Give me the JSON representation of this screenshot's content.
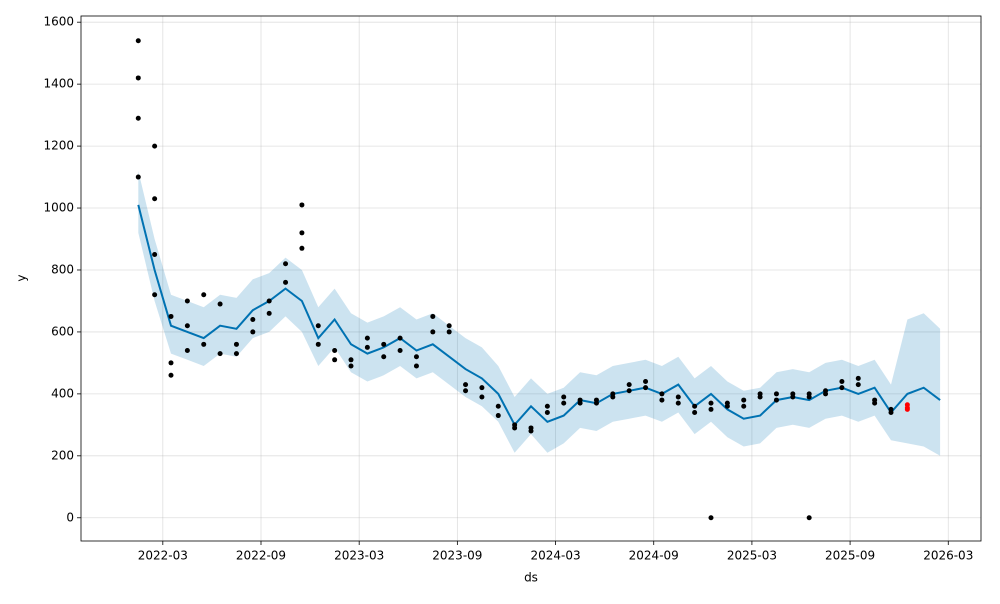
{
  "chart_data": {
    "type": "forecast",
    "xlabel": "ds",
    "ylabel": "y",
    "xlim": [
      "2021-10",
      "2026-05"
    ],
    "xticks": [
      "2022-03",
      "2022-09",
      "2023-03",
      "2023-09",
      "2024-03",
      "2024-09",
      "2025-03",
      "2025-09",
      "2026-03"
    ],
    "ylim": [
      -75,
      1620
    ],
    "yticks": [
      0,
      200,
      400,
      600,
      800,
      1000,
      1200,
      1400,
      1600
    ],
    "grid": true,
    "forecast": {
      "color": "#0072b2",
      "x": [
        "2022-01",
        "2022-02",
        "2022-03",
        "2022-04",
        "2022-05",
        "2022-06",
        "2022-07",
        "2022-08",
        "2022-09",
        "2022-10",
        "2022-11",
        "2022-12",
        "2023-01",
        "2023-02",
        "2023-03",
        "2023-04",
        "2023-05",
        "2023-06",
        "2023-07",
        "2023-08",
        "2023-09",
        "2023-10",
        "2023-11",
        "2023-12",
        "2024-01",
        "2024-02",
        "2024-03",
        "2024-04",
        "2024-05",
        "2024-06",
        "2024-07",
        "2024-08",
        "2024-09",
        "2024-10",
        "2024-11",
        "2024-12",
        "2025-01",
        "2025-02",
        "2025-03",
        "2025-04",
        "2025-05",
        "2025-06",
        "2025-07",
        "2025-08",
        "2025-09",
        "2025-10",
        "2025-11",
        "2025-12",
        "2026-01",
        "2026-02"
      ],
      "values": [
        1010,
        800,
        620,
        600,
        580,
        620,
        610,
        670,
        700,
        740,
        700,
        580,
        640,
        560,
        530,
        550,
        580,
        540,
        560,
        520,
        480,
        450,
        400,
        300,
        360,
        310,
        330,
        380,
        370,
        400,
        410,
        420,
        400,
        430,
        360,
        400,
        350,
        320,
        330,
        380,
        390,
        380,
        410,
        420,
        400,
        420,
        340,
        400,
        420,
        380
      ],
      "lower": [
        920,
        700,
        530,
        510,
        490,
        530,
        520,
        580,
        600,
        650,
        600,
        490,
        550,
        470,
        440,
        460,
        490,
        450,
        470,
        430,
        390,
        360,
        310,
        210,
        270,
        210,
        240,
        290,
        280,
        310,
        320,
        330,
        310,
        340,
        270,
        310,
        260,
        230,
        240,
        290,
        300,
        290,
        320,
        330,
        310,
        330,
        250,
        240,
        230,
        200
      ],
      "upper": [
        1120,
        900,
        720,
        700,
        680,
        720,
        710,
        770,
        790,
        840,
        800,
        680,
        740,
        660,
        630,
        650,
        680,
        640,
        660,
        620,
        580,
        550,
        490,
        390,
        450,
        400,
        420,
        470,
        460,
        490,
        500,
        510,
        490,
        520,
        450,
        490,
        440,
        410,
        420,
        470,
        480,
        470,
        500,
        510,
        490,
        510,
        430,
        640,
        660,
        610
      ]
    },
    "observed": {
      "color": "#000000",
      "x": [
        "2022-01",
        "2022-01",
        "2022-01",
        "2022-01",
        "2022-02",
        "2022-02",
        "2022-02",
        "2022-02",
        "2022-03",
        "2022-03",
        "2022-03",
        "2022-04",
        "2022-04",
        "2022-04",
        "2022-05",
        "2022-05",
        "2022-06",
        "2022-06",
        "2022-07",
        "2022-07",
        "2022-08",
        "2022-08",
        "2022-09",
        "2022-09",
        "2022-10",
        "2022-10",
        "2022-11",
        "2022-11",
        "2022-11",
        "2022-12",
        "2022-12",
        "2023-01",
        "2023-01",
        "2023-02",
        "2023-02",
        "2023-03",
        "2023-03",
        "2023-04",
        "2023-04",
        "2023-05",
        "2023-05",
        "2023-06",
        "2023-06",
        "2023-07",
        "2023-07",
        "2023-08",
        "2023-08",
        "2023-09",
        "2023-09",
        "2023-10",
        "2023-10",
        "2023-11",
        "2023-11",
        "2023-12",
        "2023-12",
        "2024-01",
        "2024-01",
        "2024-02",
        "2024-02",
        "2024-03",
        "2024-03",
        "2024-04",
        "2024-04",
        "2024-05",
        "2024-05",
        "2024-06",
        "2024-06",
        "2024-07",
        "2024-07",
        "2024-08",
        "2024-08",
        "2024-09",
        "2024-09",
        "2024-10",
        "2024-10",
        "2024-11",
        "2024-11",
        "2024-12",
        "2024-12",
        "2024-12",
        "2025-01",
        "2025-01",
        "2025-02",
        "2025-02",
        "2025-03",
        "2025-03",
        "2025-04",
        "2025-04",
        "2025-05",
        "2025-05",
        "2025-06",
        "2025-06",
        "2025-06",
        "2025-07",
        "2025-07",
        "2025-08",
        "2025-08",
        "2025-09",
        "2025-09",
        "2025-10",
        "2025-10",
        "2025-11",
        "2025-11"
      ],
      "values": [
        1540,
        1420,
        1290,
        1100,
        1200,
        1030,
        850,
        720,
        650,
        500,
        460,
        700,
        620,
        540,
        720,
        560,
        690,
        530,
        560,
        530,
        640,
        600,
        700,
        660,
        820,
        760,
        1010,
        920,
        870,
        620,
        560,
        540,
        510,
        510,
        490,
        580,
        550,
        560,
        520,
        580,
        540,
        520,
        490,
        650,
        600,
        620,
        600,
        430,
        410,
        420,
        390,
        360,
        330,
        300,
        290,
        290,
        280,
        360,
        340,
        390,
        370,
        380,
        370,
        380,
        370,
        400,
        390,
        430,
        410,
        440,
        420,
        400,
        380,
        390,
        370,
        360,
        340,
        370,
        350,
        0,
        370,
        360,
        380,
        360,
        400,
        390,
        400,
        380,
        400,
        390,
        400,
        390,
        0,
        410,
        400,
        440,
        420,
        450,
        430,
        380,
        370,
        350,
        340
      ]
    },
    "test": {
      "color": "#ff0000",
      "x": [
        "2025-12",
        "2025-12",
        "2025-12"
      ],
      "values": [
        355,
        365,
        350
      ]
    }
  }
}
